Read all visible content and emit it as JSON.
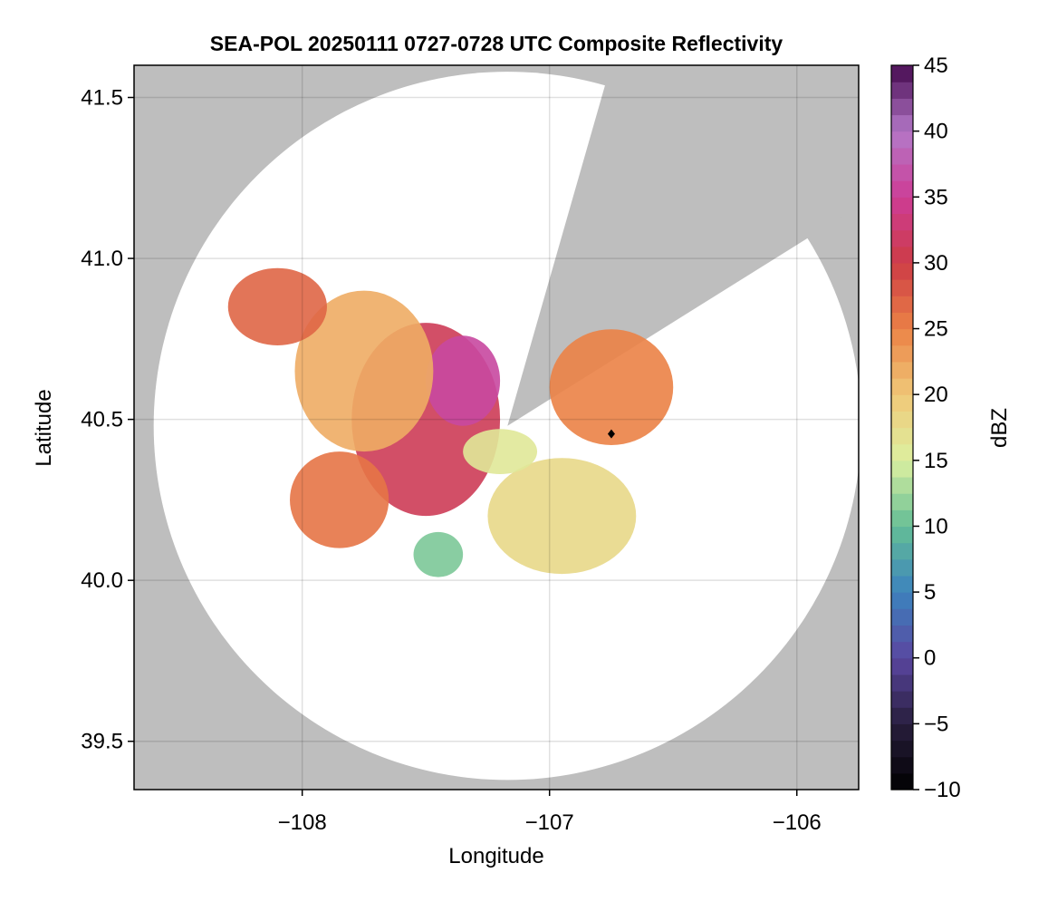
{
  "chart_data": {
    "type": "heatmap",
    "title": "SEA-POL 20250111 0727-0728 UTC Composite Reflectivity",
    "xlabel": "Longitude",
    "ylabel": "Latitude",
    "xlim": [
      -108.68,
      -105.75
    ],
    "ylim": [
      39.35,
      41.6
    ],
    "x_ticks": [
      -108,
      -107,
      -106
    ],
    "x_tick_labels": [
      "−108",
      "−107",
      "−106"
    ],
    "y_ticks": [
      39.5,
      40.0,
      40.5,
      41.0,
      41.5
    ],
    "y_tick_labels": [
      "39.5",
      "40.0",
      "40.5",
      "41.0",
      "41.5"
    ],
    "grid": true,
    "colorbar": {
      "label": "dBZ",
      "range": [
        -10,
        45
      ],
      "ticks": [
        -10,
        -5,
        0,
        5,
        10,
        15,
        20,
        25,
        30,
        35,
        40,
        45
      ],
      "tick_labels": [
        "−10",
        "−5",
        "0",
        "5",
        "10",
        "15",
        "20",
        "25",
        "30",
        "35",
        "40",
        "45"
      ],
      "colormap": "spectral (reversed)",
      "placement": "right"
    },
    "radar": {
      "center_lon": -107.17,
      "center_lat": 40.48,
      "coverage_radius_lat_deg": 1.1,
      "blocked_sectors_deg_cw_from_north": [
        [
          16,
          58
        ]
      ],
      "outside_coverage_color": "#bebebe"
    },
    "marker": {
      "lon": -106.75,
      "lat": 40.455,
      "shape": "diamond",
      "color": "#000000"
    },
    "echo_regions": [
      {
        "lon": -107.5,
        "lat": 40.5,
        "rlon": 0.3,
        "rlat": 0.3,
        "dbz": 31
      },
      {
        "lon": -107.35,
        "lat": 40.62,
        "rlon": 0.15,
        "rlat": 0.14,
        "dbz": 36
      },
      {
        "lon": -107.75,
        "lat": 40.65,
        "rlon": 0.28,
        "rlat": 0.25,
        "dbz": 22
      },
      {
        "lon": -108.1,
        "lat": 40.85,
        "rlon": 0.2,
        "rlat": 0.12,
        "dbz": 27
      },
      {
        "lon": -107.85,
        "lat": 40.25,
        "rlon": 0.2,
        "rlat": 0.15,
        "dbz": 26
      },
      {
        "lon": -106.75,
        "lat": 40.6,
        "rlon": 0.25,
        "rlat": 0.18,
        "dbz": 25
      },
      {
        "lon": -106.95,
        "lat": 40.2,
        "rlon": 0.3,
        "rlat": 0.18,
        "dbz": 18
      },
      {
        "lon": -107.45,
        "lat": 40.08,
        "rlon": 0.1,
        "rlat": 0.07,
        "dbz": 11
      },
      {
        "lon": -107.2,
        "lat": 40.4,
        "rlon": 0.15,
        "rlat": 0.07,
        "dbz": 16
      }
    ],
    "colors": {
      "plot_background": "#ffffff",
      "outside_coverage": "#bebebe"
    }
  }
}
